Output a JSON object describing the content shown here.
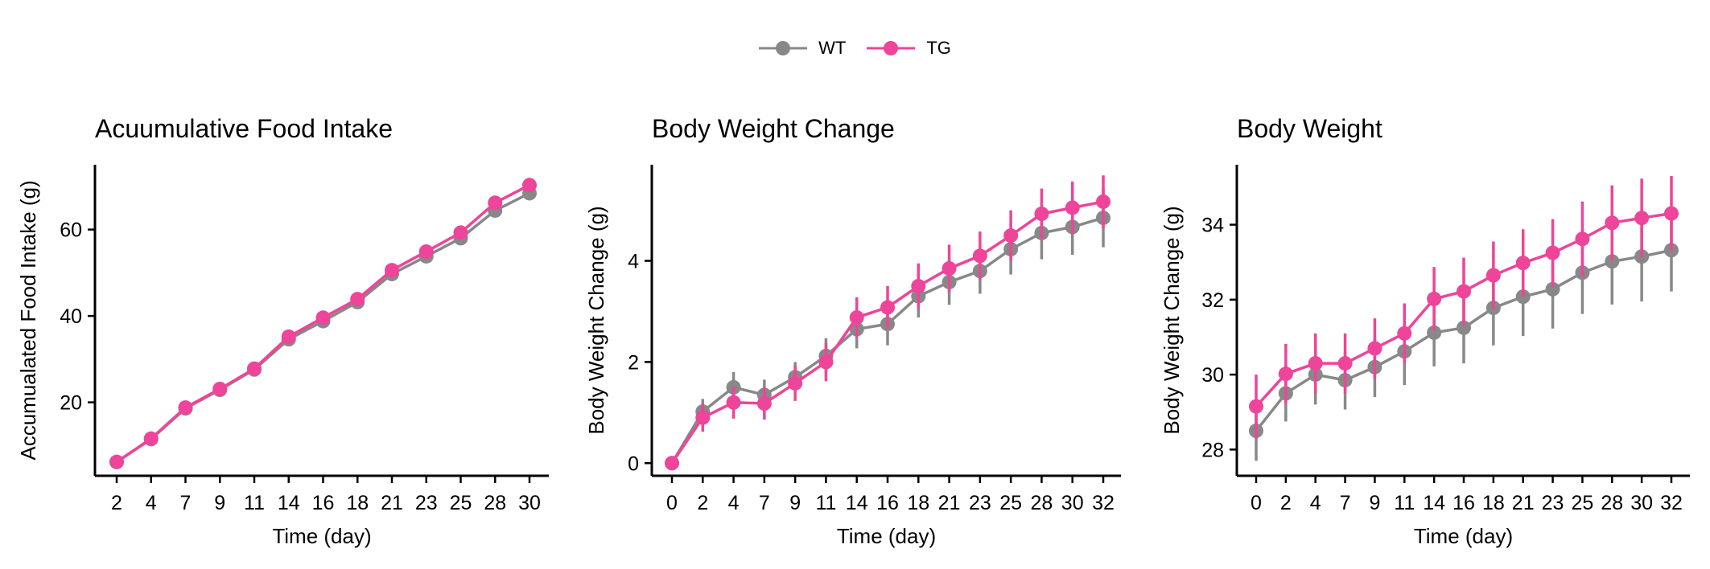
{
  "legend": {
    "items": [
      {
        "name": "WT",
        "color": "#888888"
      },
      {
        "name": "TG",
        "color": "#EE4499"
      }
    ]
  },
  "chart_data": [
    {
      "type": "line",
      "title": "Acuumulative Food Intake",
      "xlabel": "Time (day)",
      "ylabel": "Accumualated Food Intake (g)",
      "categories": [
        "2",
        "4",
        "7",
        "9",
        "11",
        "14",
        "16",
        "18",
        "21",
        "23",
        "25",
        "28",
        "30"
      ],
      "yticks": [
        20,
        40,
        60
      ],
      "ylim": [
        3,
        75
      ],
      "grid": false,
      "series": [
        {
          "name": "WT",
          "color": "#888888",
          "values": [
            6.2,
            11.5,
            18.6,
            22.9,
            27.6,
            34.6,
            38.8,
            43.2,
            49.7,
            53.8,
            58.0,
            64.4,
            68.4
          ],
          "err": [
            0.5,
            0.5,
            0.6,
            0.6,
            0.7,
            0.7,
            0.8,
            0.8,
            0.9,
            0.9,
            1.0,
            1.0,
            1.1
          ]
        },
        {
          "name": "TG",
          "color": "#EE4499",
          "values": [
            6.2,
            11.6,
            18.8,
            23.1,
            27.8,
            35.2,
            39.6,
            43.9,
            50.6,
            54.9,
            59.3,
            66.2,
            70.3
          ],
          "err": [
            0.5,
            0.5,
            0.6,
            0.6,
            0.7,
            0.7,
            0.8,
            0.8,
            0.9,
            0.9,
            1.0,
            1.0,
            1.1
          ]
        }
      ]
    },
    {
      "type": "line",
      "title": "Body Weight Change",
      "xlabel": "Time (day)",
      "ylabel": "Body Weight Change (g)",
      "categories": [
        "0",
        "2",
        "4",
        "7",
        "9",
        "11",
        "14",
        "16",
        "18",
        "21",
        "23",
        "25",
        "28",
        "30",
        "32"
      ],
      "yticks": [
        0,
        2,
        4
      ],
      "ylim": [
        -0.25,
        5.9
      ],
      "grid": false,
      "series": [
        {
          "name": "WT",
          "color": "#888888",
          "values": [
            0,
            1.02,
            1.5,
            1.35,
            1.7,
            2.12,
            2.65,
            2.75,
            3.3,
            3.58,
            3.8,
            4.23,
            4.55,
            4.67,
            4.85
          ],
          "err": [
            0.05,
            0.25,
            0.3,
            0.3,
            0.3,
            0.35,
            0.38,
            0.42,
            0.42,
            0.45,
            0.45,
            0.5,
            0.52,
            0.55,
            0.58
          ]
        },
        {
          "name": "TG",
          "color": "#EE4499",
          "values": [
            0,
            0.9,
            1.2,
            1.18,
            1.58,
            2.0,
            2.88,
            3.08,
            3.5,
            3.85,
            4.1,
            4.5,
            4.93,
            5.05,
            5.17
          ],
          "err": [
            0.05,
            0.28,
            0.32,
            0.32,
            0.35,
            0.38,
            0.4,
            0.42,
            0.45,
            0.47,
            0.48,
            0.5,
            0.5,
            0.52,
            0.52
          ]
        }
      ]
    },
    {
      "type": "line",
      "title": "Body Weight",
      "xlabel": "Time (day)",
      "ylabel": "Body Weight Change (g)",
      "categories": [
        "0",
        "2",
        "4",
        "7",
        "9",
        "11",
        "14",
        "16",
        "18",
        "21",
        "23",
        "25",
        "28",
        "30",
        "32"
      ],
      "yticks": [
        28,
        30,
        32,
        34
      ],
      "ylim": [
        27.3,
        35.6
      ],
      "grid": false,
      "series": [
        {
          "name": "WT",
          "color": "#888888",
          "values": [
            28.5,
            29.5,
            30.0,
            29.85,
            30.2,
            30.62,
            31.12,
            31.25,
            31.78,
            32.08,
            32.28,
            32.72,
            33.02,
            33.15,
            33.32
          ],
          "err": [
            0.8,
            0.75,
            0.8,
            0.78,
            0.8,
            0.9,
            0.9,
            0.95,
            1.0,
            1.05,
            1.05,
            1.1,
            1.15,
            1.2,
            1.1
          ]
        },
        {
          "name": "TG",
          "color": "#EE4499",
          "values": [
            29.15,
            30.02,
            30.3,
            30.3,
            30.7,
            31.1,
            32.02,
            32.22,
            32.65,
            32.98,
            33.25,
            33.62,
            34.05,
            34.18,
            34.3
          ],
          "err": [
            0.85,
            0.8,
            0.8,
            0.8,
            0.8,
            0.8,
            0.85,
            0.9,
            0.9,
            0.9,
            0.9,
            1.0,
            1.0,
            1.05,
            1.0
          ]
        }
      ]
    }
  ]
}
